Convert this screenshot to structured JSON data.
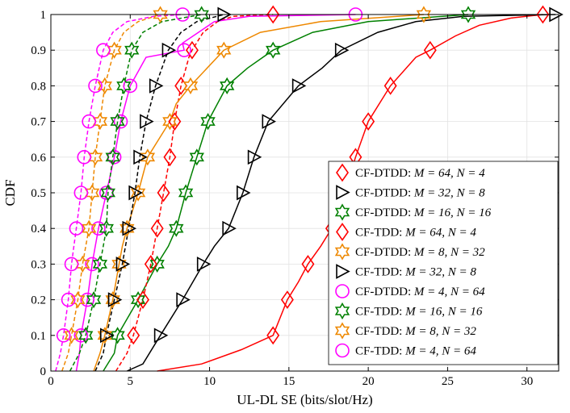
{
  "chart_data": {
    "type": "line",
    "title": "",
    "xlabel": "UL-DL SE (bits/slot/Hz)",
    "ylabel": "CDF",
    "xlim": [
      0,
      32
    ],
    "ylim": [
      0,
      1
    ],
    "x_ticks": [
      "0",
      "5",
      "10",
      "15",
      "20",
      "25",
      "30"
    ],
    "y_ticks": [
      "0",
      "0.1",
      "0.2",
      "0.3",
      "0.4",
      "0.5",
      "0.6",
      "0.7",
      "0.8",
      "0.9",
      "1"
    ],
    "grid": true,
    "legend_position": "bottom-right",
    "series": [
      {
        "name": "CF-DTDD: M = 64, N = 4",
        "legend_prefix": "CF-DTDD: ",
        "legend_math": "M = 64, N = 4",
        "color": "#ff0000",
        "style": "solid",
        "marker": "diamond",
        "points": [
          [
            6.7,
            0
          ],
          [
            9.5,
            0.02
          ],
          [
            12,
            0.06
          ],
          [
            14,
            0.1
          ],
          [
            14.9,
            0.2
          ],
          [
            15.6,
            0.25
          ],
          [
            16.2,
            0.3
          ],
          [
            17,
            0.35
          ],
          [
            17.7,
            0.4
          ],
          [
            18.5,
            0.5
          ],
          [
            19.2,
            0.6
          ],
          [
            20,
            0.7
          ],
          [
            21.4,
            0.8
          ],
          [
            23,
            0.88
          ],
          [
            23.9,
            0.9
          ],
          [
            25.5,
            0.94
          ],
          [
            27,
            0.97
          ],
          [
            29,
            0.99
          ],
          [
            31,
            1
          ]
        ]
      },
      {
        "name": "CF-DTDD: M = 32, N = 8",
        "legend_prefix": "CF-DTDD: ",
        "legend_math": "M = 32, N = 8",
        "color": "#000000",
        "style": "solid",
        "marker": "triangle-right",
        "points": [
          [
            4.8,
            0
          ],
          [
            5.8,
            0.02
          ],
          [
            6.9,
            0.1
          ],
          [
            8.3,
            0.2
          ],
          [
            9.6,
            0.3
          ],
          [
            10.3,
            0.35
          ],
          [
            11.2,
            0.4
          ],
          [
            12.1,
            0.5
          ],
          [
            12.8,
            0.6
          ],
          [
            13.7,
            0.7
          ],
          [
            15.6,
            0.8
          ],
          [
            17.1,
            0.85
          ],
          [
            18.3,
            0.9
          ],
          [
            20.6,
            0.95
          ],
          [
            23,
            0.98
          ],
          [
            26,
            0.995
          ],
          [
            31.8,
            1
          ]
        ]
      },
      {
        "name": "CF-DTDD: M = 16, N = 16",
        "legend_prefix": "CF-DTDD: ",
        "legend_math": "M = 16, N = 16",
        "color": "#008000",
        "style": "solid",
        "marker": "hexagram",
        "points": [
          [
            3.3,
            0
          ],
          [
            4,
            0.05
          ],
          [
            4.2,
            0.1
          ],
          [
            5.5,
            0.2
          ],
          [
            6.7,
            0.3
          ],
          [
            7.4,
            0.35
          ],
          [
            7.9,
            0.4
          ],
          [
            8.5,
            0.5
          ],
          [
            9.2,
            0.6
          ],
          [
            9.9,
            0.7
          ],
          [
            11.1,
            0.8
          ],
          [
            12.4,
            0.85
          ],
          [
            14,
            0.9
          ],
          [
            16.5,
            0.95
          ],
          [
            20,
            0.98
          ],
          [
            26.3,
            1
          ]
        ]
      },
      {
        "name": "CF-TDD: M = 64, N = 4",
        "legend_prefix": "CF-TDD: ",
        "legend_math": "M = 64, N = 4",
        "color": "#ff0000",
        "style": "dashed",
        "marker": "diamond",
        "points": [
          [
            4.1,
            0
          ],
          [
            4.8,
            0.05
          ],
          [
            5.2,
            0.1
          ],
          [
            5.8,
            0.2
          ],
          [
            6.3,
            0.3
          ],
          [
            6.5,
            0.35
          ],
          [
            6.7,
            0.4
          ],
          [
            7.1,
            0.5
          ],
          [
            7.5,
            0.6
          ],
          [
            7.8,
            0.7
          ],
          [
            8.2,
            0.8
          ],
          [
            8.7,
            0.88
          ],
          [
            8.9,
            0.9
          ],
          [
            9.6,
            0.95
          ],
          [
            10.5,
            0.98
          ],
          [
            11.5,
            0.995
          ],
          [
            14,
            1
          ]
        ]
      },
      {
        "name": "CF-DTDD: M = 8, N = 32",
        "legend_prefix": "CF-DTDD: ",
        "legend_math": "M = 8, N = 32",
        "color": "#ee8800",
        "style": "solid",
        "marker": "hexagram",
        "points": [
          [
            2.7,
            0
          ],
          [
            3.1,
            0.05
          ],
          [
            3.4,
            0.1
          ],
          [
            3.9,
            0.2
          ],
          [
            4.3,
            0.3
          ],
          [
            4.5,
            0.35
          ],
          [
            4.8,
            0.4
          ],
          [
            5.5,
            0.5
          ],
          [
            6.1,
            0.6
          ],
          [
            7.5,
            0.7
          ],
          [
            7.9,
            0.75
          ],
          [
            8.8,
            0.8
          ],
          [
            10.9,
            0.9
          ],
          [
            13.2,
            0.95
          ],
          [
            17,
            0.98
          ],
          [
            23.5,
            1
          ]
        ]
      },
      {
        "name": "CF-TDD: M = 32, N = 8",
        "legend_prefix": "CF-TDD: ",
        "legend_math": "M = 32, N = 8",
        "color": "#000000",
        "style": "dashed",
        "marker": "triangle-right",
        "points": [
          [
            2.8,
            0
          ],
          [
            3.3,
            0.05
          ],
          [
            3.5,
            0.1
          ],
          [
            4,
            0.2
          ],
          [
            4.5,
            0.3
          ],
          [
            4.7,
            0.35
          ],
          [
            4.9,
            0.4
          ],
          [
            5.3,
            0.5
          ],
          [
            5.6,
            0.6
          ],
          [
            6,
            0.7
          ],
          [
            6.6,
            0.8
          ],
          [
            7.4,
            0.9
          ],
          [
            8.2,
            0.95
          ],
          [
            9.2,
            0.98
          ],
          [
            10.9,
            1
          ]
        ]
      },
      {
        "name": "CF-DTDD: M = 4, N = 64",
        "legend_prefix": "CF-DTDD: ",
        "legend_math": "M = 4, N = 64",
        "color": "#ff00ff",
        "style": "solid",
        "marker": "circle",
        "points": [
          [
            1.6,
            0
          ],
          [
            1.8,
            0.05
          ],
          [
            1.9,
            0.1
          ],
          [
            2.3,
            0.2
          ],
          [
            2.6,
            0.3
          ],
          [
            2.8,
            0.35
          ],
          [
            3,
            0.4
          ],
          [
            3.5,
            0.5
          ],
          [
            4,
            0.6
          ],
          [
            4.4,
            0.7
          ],
          [
            5,
            0.8
          ],
          [
            6,
            0.88
          ],
          [
            8.4,
            0.9
          ],
          [
            8.3,
            0.92
          ],
          [
            9.3,
            0.95
          ],
          [
            10.3,
            0.98
          ],
          [
            12.5,
            0.995
          ],
          [
            19.2,
            1
          ]
        ]
      },
      {
        "name": "CF-TDD: M = 16, N = 16",
        "legend_prefix": "CF-TDD: ",
        "legend_math": "M = 16, N = 16",
        "color": "#008000",
        "style": "dashed",
        "marker": "hexagram",
        "points": [
          [
            1.2,
            0
          ],
          [
            1.8,
            0.05
          ],
          [
            2.2,
            0.1
          ],
          [
            2.7,
            0.2
          ],
          [
            3.1,
            0.3
          ],
          [
            3.3,
            0.35
          ],
          [
            3.5,
            0.4
          ],
          [
            3.6,
            0.5
          ],
          [
            3.9,
            0.6
          ],
          [
            4.2,
            0.7
          ],
          [
            4.6,
            0.8
          ],
          [
            5.1,
            0.9
          ],
          [
            5.8,
            0.95
          ],
          [
            7,
            0.98
          ],
          [
            9.5,
            1
          ]
        ]
      },
      {
        "name": "CF-TDD: M = 8, N = 32",
        "legend_prefix": "CF-TDD: ",
        "legend_math": "M = 8, N = 32",
        "color": "#ee8800",
        "style": "dashed",
        "marker": "hexagram",
        "points": [
          [
            0.7,
            0
          ],
          [
            1.1,
            0.05
          ],
          [
            1.3,
            0.1
          ],
          [
            1.7,
            0.2
          ],
          [
            2,
            0.3
          ],
          [
            2.2,
            0.35
          ],
          [
            2.4,
            0.4
          ],
          [
            2.6,
            0.5
          ],
          [
            2.8,
            0.6
          ],
          [
            3.1,
            0.7
          ],
          [
            3.4,
            0.8
          ],
          [
            4,
            0.9
          ],
          [
            4.6,
            0.95
          ],
          [
            5.5,
            0.98
          ],
          [
            6.9,
            1
          ]
        ]
      },
      {
        "name": "CF-TDD: M = 4, N = 64",
        "legend_prefix": "CF-TDD: ",
        "legend_math": "M = 4, N = 64",
        "color": "#ff00ff",
        "style": "dashed",
        "marker": "circle",
        "points": [
          [
            0.3,
            0
          ],
          [
            0.6,
            0.05
          ],
          [
            0.8,
            0.1
          ],
          [
            1.1,
            0.2
          ],
          [
            1.3,
            0.3
          ],
          [
            1.45,
            0.35
          ],
          [
            1.6,
            0.4
          ],
          [
            1.9,
            0.5
          ],
          [
            2.1,
            0.6
          ],
          [
            2.4,
            0.7
          ],
          [
            2.8,
            0.8
          ],
          [
            3.3,
            0.9
          ],
          [
            3.9,
            0.95
          ],
          [
            4.8,
            0.98
          ],
          [
            6.5,
            0.995
          ],
          [
            8.3,
            1
          ]
        ]
      }
    ]
  }
}
